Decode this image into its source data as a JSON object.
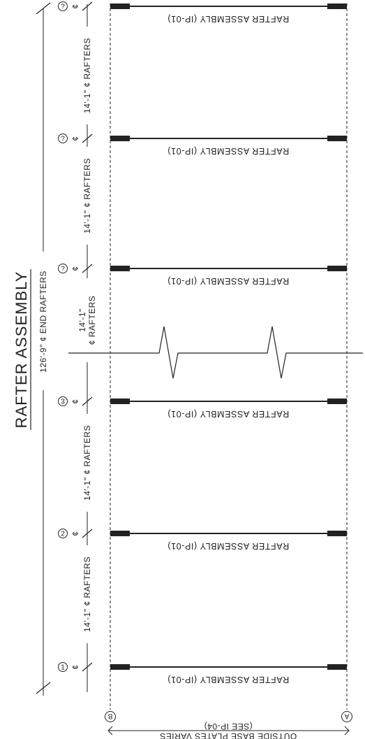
{
  "title": "RAFTER ASSEMBLY",
  "overall_dimension": "126'-9\" ¢ END RAFTERS",
  "bay_dimensions": [
    "14'-1\" ¢ RAFTERS",
    "14'-1\" ¢ RAFTERS",
    "14'-1\" ¢ RAFTERS",
    "14'-1\"",
    "14'-1\" ¢ RAFTERS",
    "14'-1\" ¢ RAFTERS"
  ],
  "split_dimension_sub": "¢ RAFTERS",
  "rafter_label": "RAFTER ASSEMBLY (IP-01)",
  "gridlines_numbered": [
    "?",
    "?",
    "?",
    "3",
    "2",
    "1"
  ],
  "centerline_symbol": "¢",
  "gridline_b": "B",
  "gridline_a": "A",
  "base_plate_note": "OUTSIDE BASE PLATES VARIES",
  "base_plate_ref": "(SEE IP-04)"
}
